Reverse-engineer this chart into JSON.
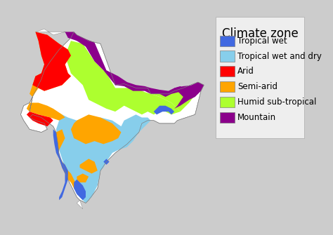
{
  "title": "Climate zone",
  "legend_items": [
    {
      "label": "Tropical wet",
      "color": "#4169E1"
    },
    {
      "label": "Tropical wet and dry",
      "color": "#87CEEB"
    },
    {
      "label": "Arid",
      "color": "#FF0000"
    },
    {
      "label": "Semi-arid",
      "color": "#FFA500"
    },
    {
      "label": "Humid sub-tropical",
      "color": "#ADFF2F"
    },
    {
      "label": "Mountain",
      "color": "#8B008B"
    }
  ],
  "background_color": "#CCCCCC",
  "ocean_color": "#CCCCCC",
  "figsize": [
    4.74,
    3.35
  ],
  "dpi": 100,
  "title_fontsize": 12,
  "label_fontsize": 8.5
}
